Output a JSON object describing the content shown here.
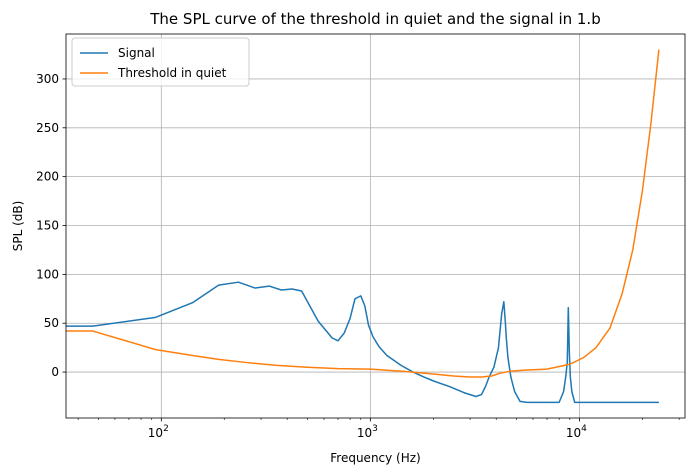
{
  "chart_data": {
    "type": "line",
    "title": "The SPL curve of the threshold in quiet and the signal in 1.b",
    "xlabel": "Frequency (Hz)",
    "ylabel": "SPL (dB)",
    "xscale": "log",
    "xlim": [
      35,
      32000
    ],
    "ylim": [
      -47,
      346
    ],
    "xticks": [
      {
        "value": 100,
        "base": "10",
        "exp": "2"
      },
      {
        "value": 1000,
        "base": "10",
        "exp": "3"
      },
      {
        "value": 10000,
        "base": "10",
        "exp": "4"
      }
    ],
    "yticks": [
      0,
      50,
      100,
      150,
      200,
      250,
      300
    ],
    "grid": true,
    "legend_position": "top-left",
    "series": [
      {
        "name": "Signal",
        "color": "#1f77b4",
        "x": [
          35,
          47,
          94,
          141,
          188,
          234,
          281,
          328,
          375,
          422,
          469,
          563,
          656,
          700,
          750,
          800,
          844,
          900,
          940,
          980,
          1030,
          1100,
          1200,
          1400,
          1600,
          1800,
          2000,
          2400,
          2800,
          3200,
          3400,
          3550,
          3700,
          3900,
          4100,
          4250,
          4350,
          4420,
          4470,
          4550,
          4700,
          4900,
          5200,
          5600,
          6000,
          7000,
          8000,
          8400,
          8600,
          8750,
          8850,
          8950,
          9050,
          9200,
          9500,
          10000,
          12000,
          16000,
          20000,
          24000
        ],
        "y": [
          47,
          47,
          56,
          71,
          89,
          92,
          86,
          88,
          84,
          85,
          83,
          52,
          35,
          32,
          40,
          55,
          75,
          78,
          68,
          48,
          36,
          26,
          17,
          7,
          0,
          -5,
          -9,
          -15,
          -21,
          -25,
          -23,
          -15,
          -5,
          5,
          25,
          60,
          72,
          52,
          35,
          15,
          -5,
          -20,
          -30,
          -31,
          -31,
          -31,
          -31,
          -20,
          -5,
          10,
          66,
          20,
          -5,
          -20,
          -31,
          -31,
          -31,
          -31,
          -31,
          -31
        ]
      },
      {
        "name": "Threshold in quiet",
        "color": "#ff7f0e",
        "x": [
          35,
          47,
          94,
          141,
          188,
          250,
          350,
          500,
          700,
          1000,
          1400,
          2000,
          2500,
          3000,
          3400,
          3800,
          4200,
          4700,
          5500,
          7000,
          9000,
          10500,
          12000,
          14000,
          16000,
          18000,
          20000,
          22000,
          24000
        ],
        "y": [
          42,
          42,
          23,
          17,
          13,
          10,
          7,
          5,
          3.5,
          3,
          1,
          -2,
          -4,
          -5,
          -5,
          -4,
          -1,
          1,
          2,
          3,
          8,
          15,
          25,
          45,
          80,
          125,
          185,
          255,
          330
        ]
      }
    ]
  }
}
